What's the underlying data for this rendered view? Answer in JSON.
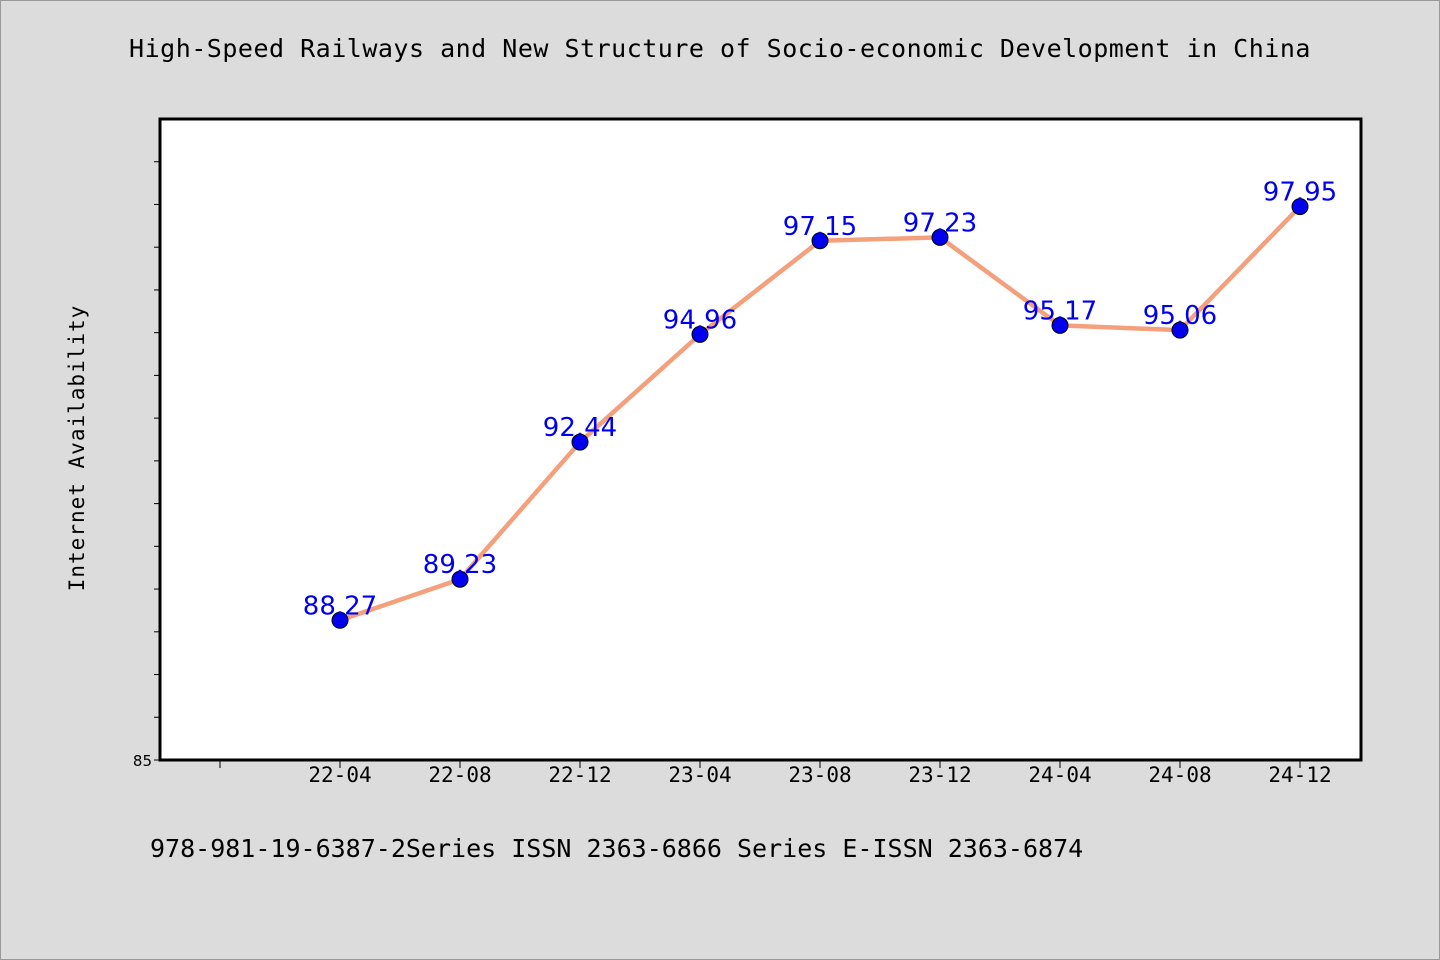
{
  "title": "High-Speed Railways and New Structure of Socio-economic Development in China",
  "footer": "978-981-19-6387-2Series ISSN 2363-6866 Series E-ISSN 2363-6874",
  "colors": {
    "background": "#dcdcdc",
    "plot_background": "#ffffff",
    "line": "#f4a07c",
    "marker": "#0000ee",
    "data_label": "#0000ee"
  },
  "chart_data": {
    "type": "line",
    "title": "High-Speed Railways and New Structure of Socio-economic Development in China",
    "xlabel": "",
    "ylabel": "Internet Availability",
    "categories": [
      "22-04",
      "22-08",
      "22-12",
      "23-04",
      "23-08",
      "23-12",
      "24-04",
      "24-08",
      "24-12"
    ],
    "series": [
      {
        "values": [
          88.27,
          89.23,
          92.44,
          94.96,
          97.15,
          97.23,
          95.17,
          95.06,
          97.95
        ]
      }
    ],
    "ylim": [
      85,
      100
    ],
    "ytick_labels": [
      "85"
    ],
    "grid": false,
    "legend": "none"
  }
}
